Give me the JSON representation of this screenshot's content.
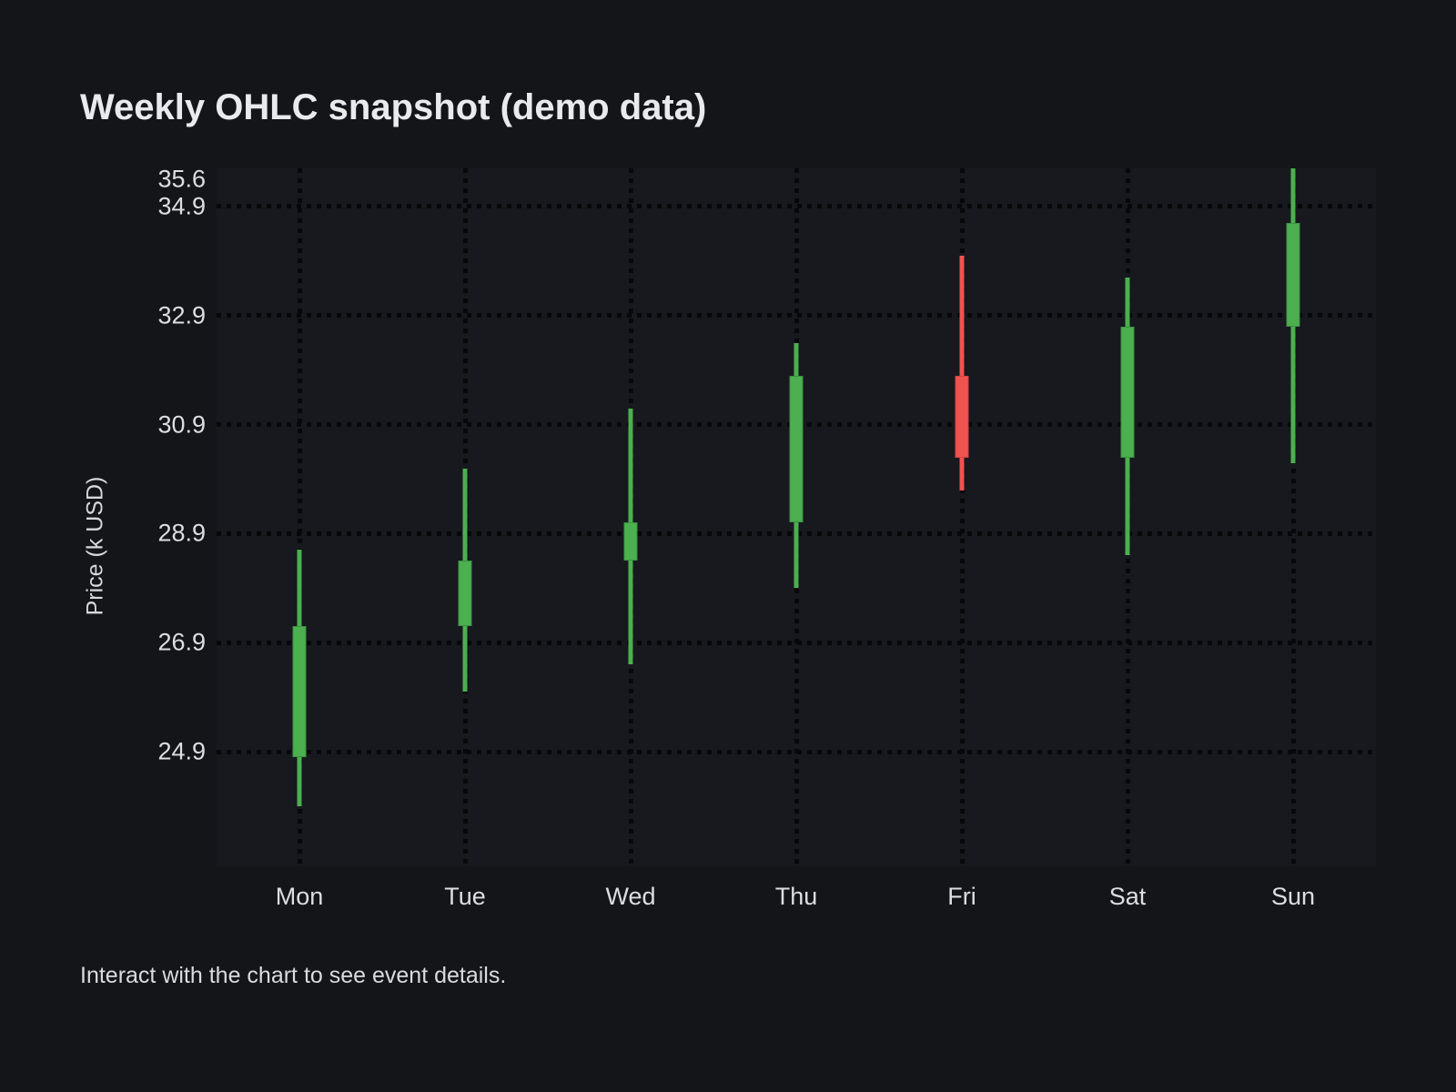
{
  "page": {
    "background": "#131519",
    "footer": "Interact with the chart to see event details."
  },
  "chart_data": {
    "type": "candlestick",
    "title": "Weekly OHLC snapshot (demo data)",
    "xlabel": "",
    "ylabel": "Price (k USD)",
    "categories": [
      "Mon",
      "Tue",
      "Wed",
      "Thu",
      "Fri",
      "Sat",
      "Sun"
    ],
    "series": [
      {
        "name": "OHLC",
        "points": [
          {
            "day": "Mon",
            "open": 24.8,
            "high": 28.6,
            "low": 23.9,
            "close": 27.2,
            "direction": "up"
          },
          {
            "day": "Tue",
            "open": 27.2,
            "high": 30.1,
            "low": 26.0,
            "close": 28.4,
            "direction": "up"
          },
          {
            "day": "Wed",
            "open": 28.4,
            "high": 31.2,
            "low": 26.5,
            "close": 29.1,
            "direction": "up"
          },
          {
            "day": "Thu",
            "open": 29.1,
            "high": 32.4,
            "low": 27.9,
            "close": 31.8,
            "direction": "up"
          },
          {
            "day": "Fri",
            "open": 31.8,
            "high": 34.0,
            "low": 29.7,
            "close": 30.3,
            "direction": "down"
          },
          {
            "day": "Sat",
            "open": 30.3,
            "high": 33.6,
            "low": 28.5,
            "close": 32.7,
            "direction": "up"
          },
          {
            "day": "Sun",
            "open": 32.7,
            "high": 35.6,
            "low": 30.2,
            "close": 34.6,
            "direction": "up"
          }
        ]
      }
    ],
    "yticks": [
      35.6,
      34.9,
      32.9,
      30.9,
      28.9,
      26.9,
      24.9
    ],
    "ylim": [
      22.8,
      35.6
    ],
    "grid": "dotted-both-axes",
    "legend": "none",
    "colors": {
      "up": "#4caf50",
      "up_border": "#3d9142",
      "down": "#ef5350",
      "down_border": "#d8423e",
      "grid": "#07080a",
      "plot_background": "#17191f",
      "page_background": "#131519",
      "text": "#dcdee1"
    }
  }
}
